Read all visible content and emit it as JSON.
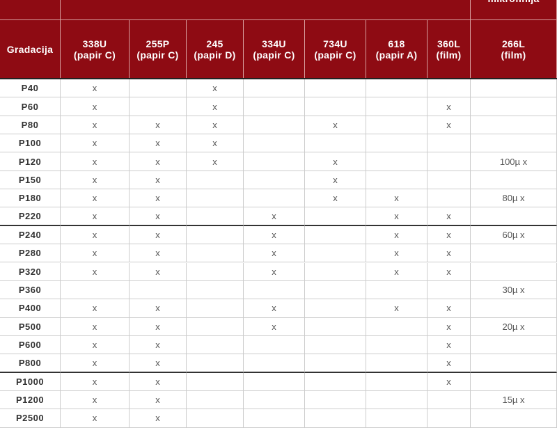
{
  "table": {
    "top_note": "mikrofinija",
    "headers": [
      [
        "Gradacija"
      ],
      [
        "338U",
        "(papir C)"
      ],
      [
        "255P",
        "(papir C)"
      ],
      [
        "245",
        "(papir D)"
      ],
      [
        "334U",
        "(papir C)"
      ],
      [
        "734U",
        "(papir C)"
      ],
      [
        "618",
        "(papir A)"
      ],
      [
        "360L",
        "(film)"
      ],
      [
        "266L",
        "(film)"
      ]
    ],
    "rows": [
      [
        "P40",
        "x",
        null,
        "x",
        null,
        null,
        null,
        null,
        null
      ],
      [
        "P60",
        "x",
        null,
        "x",
        null,
        null,
        null,
        "x",
        null
      ],
      [
        "P80",
        "x",
        "x",
        "x",
        null,
        "x",
        null,
        "x",
        null
      ],
      [
        "P100",
        "x",
        "x",
        "x",
        null,
        null,
        null,
        null,
        null
      ],
      [
        "P120",
        "x",
        "x",
        "x",
        null,
        "x",
        null,
        null,
        "100µ x"
      ],
      [
        "P150",
        "x",
        "x",
        null,
        null,
        "x",
        null,
        null,
        null
      ],
      [
        "P180",
        "x",
        "x",
        null,
        null,
        "x",
        "x",
        null,
        "80µ x"
      ],
      [
        "P220",
        "x",
        "x",
        null,
        "x",
        null,
        "x",
        "x",
        null
      ],
      [
        "P240",
        "x",
        "x",
        null,
        "x",
        null,
        "x",
        "x",
        "60µ x"
      ],
      [
        "P280",
        "x",
        "x",
        null,
        "x",
        null,
        "x",
        "x",
        null
      ],
      [
        "P320",
        "x",
        "x",
        null,
        "x",
        null,
        "x",
        "x",
        null
      ],
      [
        "P360",
        null,
        null,
        null,
        null,
        null,
        null,
        null,
        "30µ x"
      ],
      [
        "P400",
        "x",
        "x",
        null,
        "x",
        null,
        "x",
        "x",
        null
      ],
      [
        "P500",
        "x",
        "x",
        null,
        "x",
        null,
        null,
        "x",
        "20µ x"
      ],
      [
        "P600",
        "x",
        "x",
        null,
        null,
        null,
        null,
        "x",
        null
      ],
      [
        "P800",
        "x",
        "x",
        null,
        null,
        null,
        null,
        "x",
        null
      ],
      [
        "P1000",
        "x",
        "x",
        null,
        null,
        null,
        null,
        "x",
        null
      ],
      [
        "P1200",
        "x",
        "x",
        null,
        null,
        null,
        null,
        null,
        "15µ x"
      ],
      [
        "P2500",
        "x",
        "x",
        null,
        null,
        null,
        null,
        null,
        null
      ]
    ]
  }
}
